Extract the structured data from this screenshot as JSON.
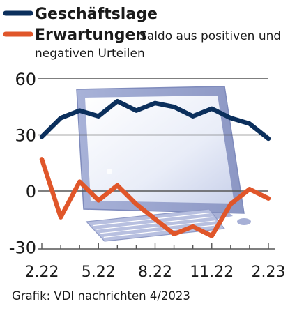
{
  "chart_data": {
    "type": "line",
    "title": "",
    "note": "Saldo aus positiven und negativen Urteilen",
    "note_line1": "Saldo aus positiven und",
    "note_line2": "negativen Urteilen",
    "x": [
      "2.22",
      "3.22",
      "4.22",
      "5.22",
      "6.22",
      "7.22",
      "8.22",
      "9.22",
      "10.22",
      "11.22",
      "12.22",
      "1.23",
      "2.23"
    ],
    "xticks": [
      "2.22",
      "5.22",
      "8.22",
      "11.22",
      "2.23"
    ],
    "yticks": [
      60,
      30,
      0,
      -30
    ],
    "ylim": [
      -32,
      65
    ],
    "grid": true,
    "legend_position": "top-left",
    "series": [
      {
        "name": "Geschäftslage",
        "color": "#0b2f5c",
        "values": [
          29,
          39,
          43,
          40,
          48,
          43,
          47,
          45,
          40,
          44,
          39,
          36,
          28
        ]
      },
      {
        "name": "Erwartungen",
        "color": "#e0562a",
        "values": [
          17,
          -14,
          5,
          -5,
          3,
          -7,
          -15,
          -23,
          -19,
          -24,
          -7,
          1,
          -4
        ]
      }
    ]
  },
  "source": "Grafik: VDI nachrichten 4/2023",
  "colors": {
    "grid": "#555555",
    "monitor_frame": "#9aa5cf",
    "monitor_screen": "#eef1fa"
  }
}
